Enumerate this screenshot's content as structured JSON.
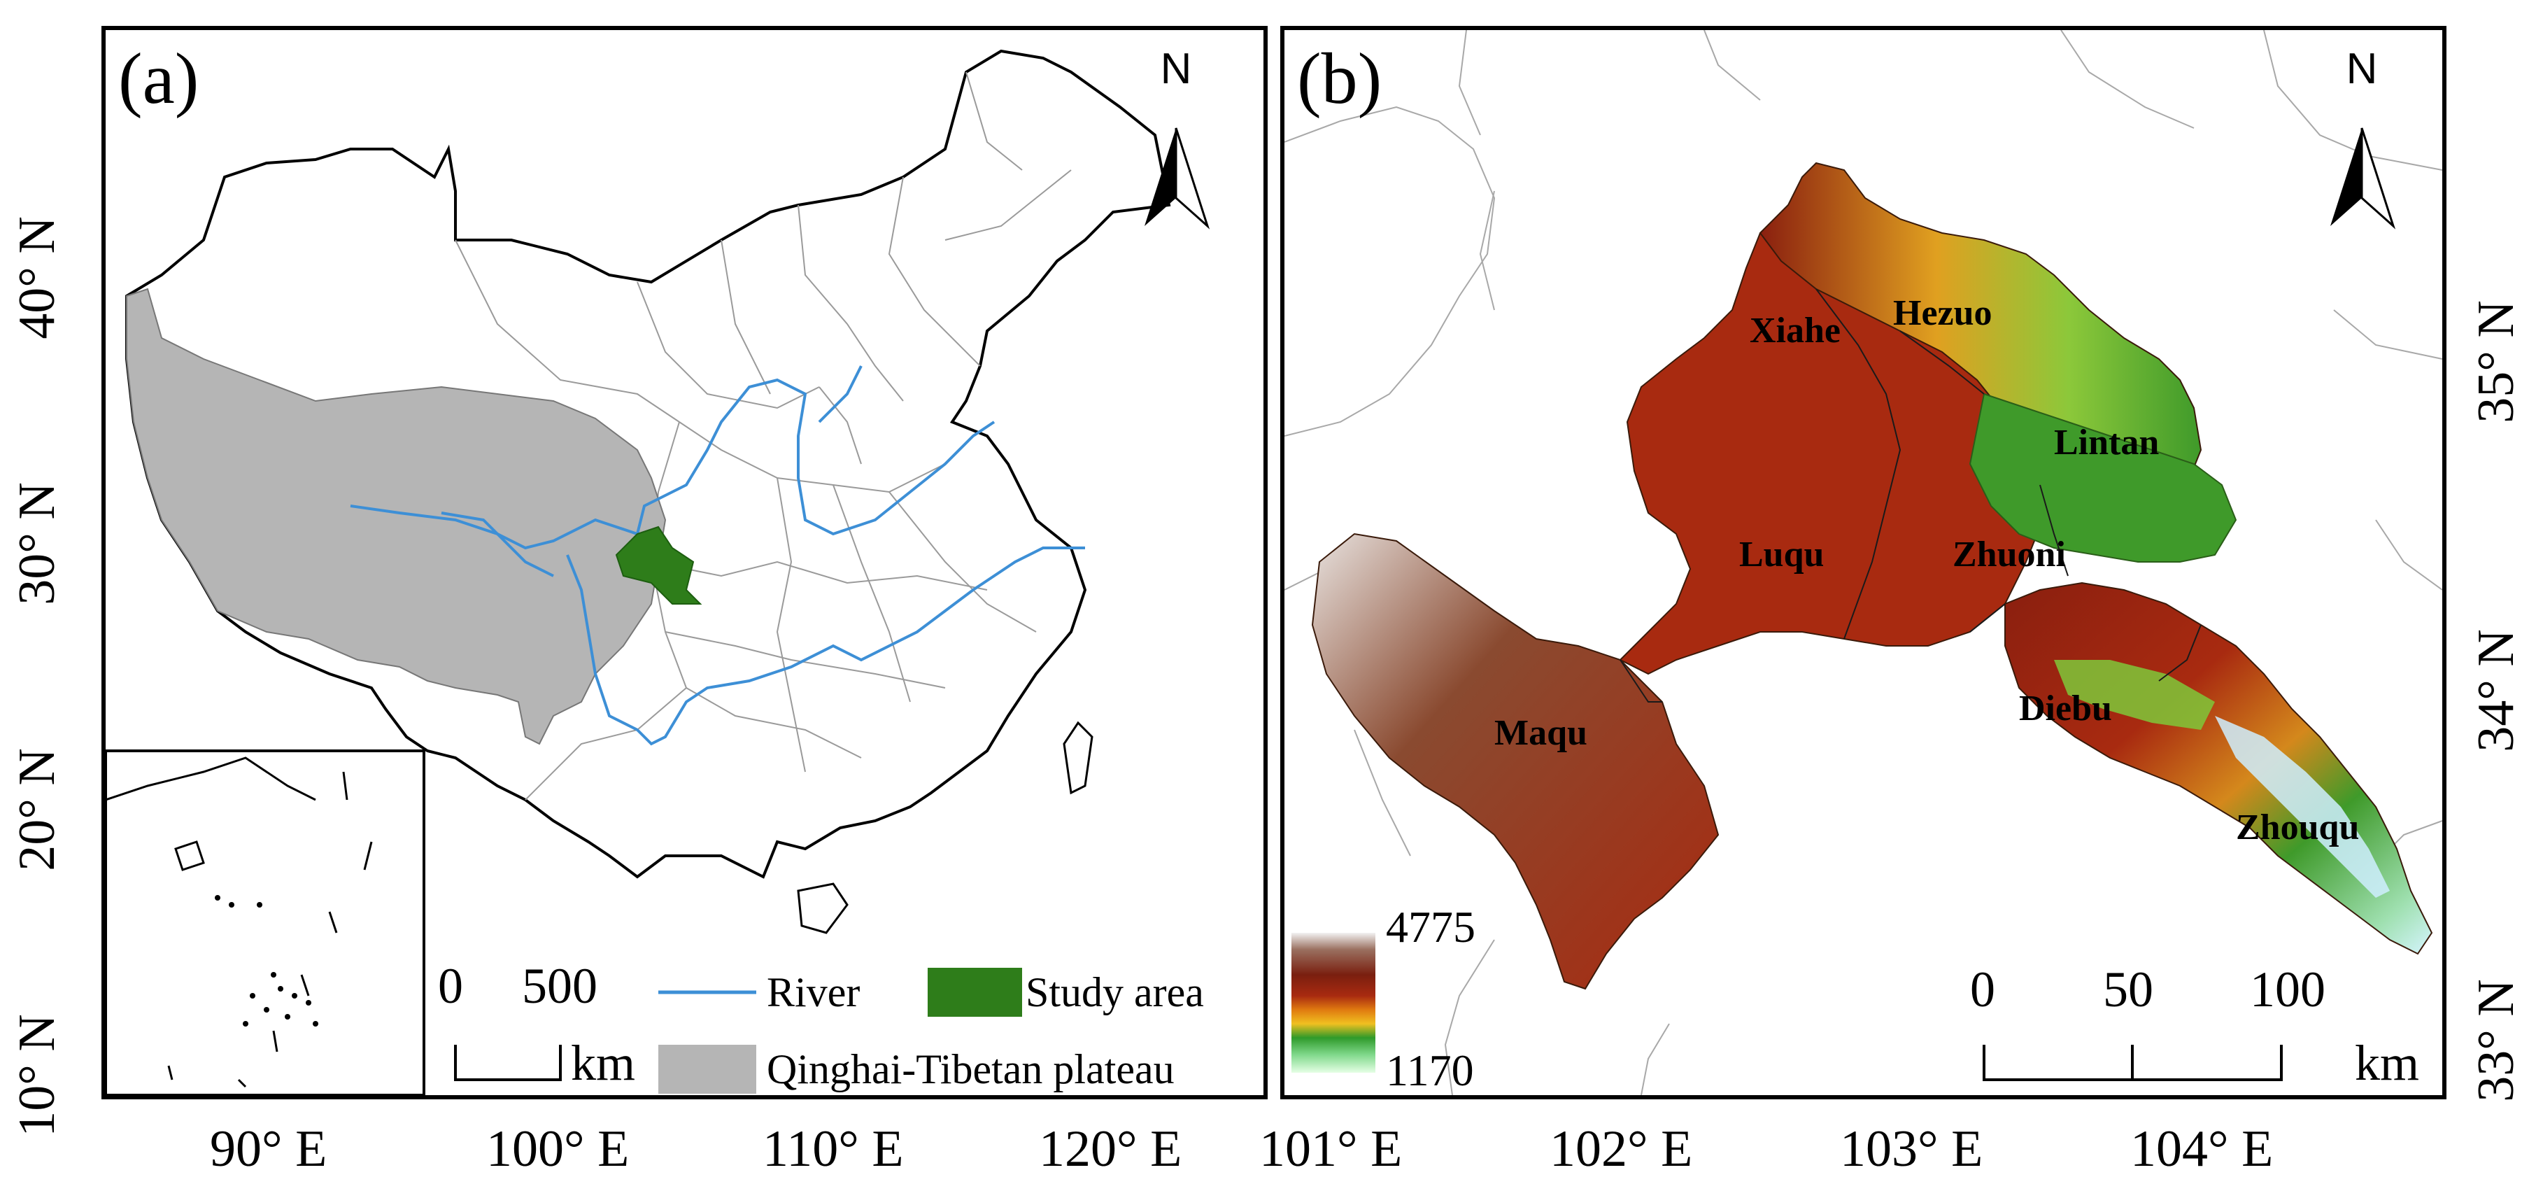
{
  "panel_a": {
    "label": "(a)",
    "north": "N",
    "x_ticks": [
      "90° E",
      "100° E",
      "110° E",
      "120° E"
    ],
    "y_ticks": [
      "10° N",
      "20° N",
      "30° N",
      "40° N"
    ],
    "scale": {
      "zero": "0",
      "value": "500",
      "unit": "km"
    },
    "legend": {
      "river": "River",
      "study_area": "Study area",
      "plateau": "Qinghai-Tibetan plateau"
    },
    "colors": {
      "river": "#3d8fd6",
      "study_area": "#2e7d1a",
      "plateau": "#b5b5b5"
    }
  },
  "panel_b": {
    "label": "(b)",
    "north": "N",
    "x_ticks": [
      "101° E",
      "102° E",
      "103° E",
      "104° E"
    ],
    "y_ticks": [
      "33° N",
      "34° N",
      "35° N"
    ],
    "counties": [
      "Xiahe",
      "Hezuo",
      "Lintan",
      "Luqu",
      "Zhuoni",
      "Maqu",
      "Diebu",
      "Zhouqu"
    ],
    "scale": {
      "zero": "0",
      "mid": "50",
      "end": "100",
      "unit": "km"
    },
    "elevation": {
      "max": "4775",
      "min": "1170"
    },
    "colors": {
      "high": "#8a1f0f",
      "mid": "#f0c020",
      "low": "#d6f5ff",
      "green": "#2f9a2a"
    }
  }
}
